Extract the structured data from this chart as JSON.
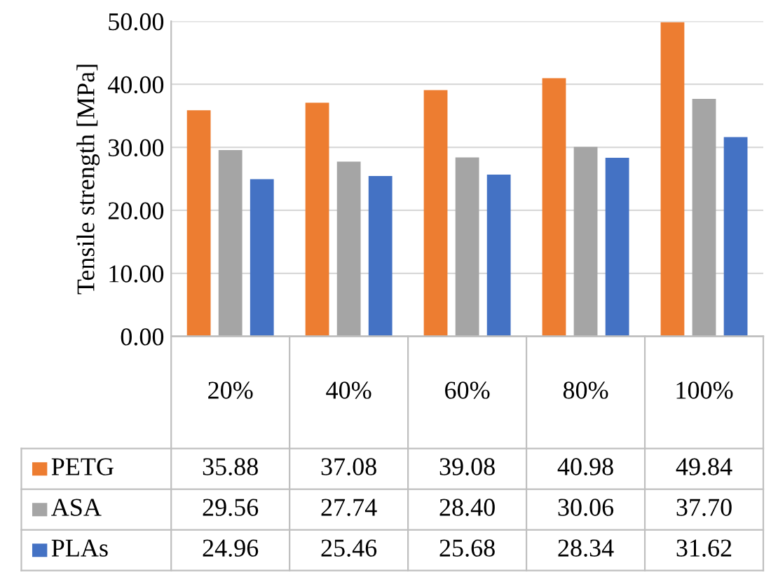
{
  "chart_data": {
    "type": "bar",
    "ylabel": "Tensile strength [MPa]",
    "categories": [
      "20%",
      "40%",
      "60%",
      "80%",
      "100%"
    ],
    "series": [
      {
        "name": "PETG",
        "color": "#ed7d31",
        "values": [
          35.88,
          37.08,
          39.08,
          40.98,
          49.84
        ],
        "value_labels": [
          "35.88",
          "37.08",
          "39.08",
          "40.98",
          "49.84"
        ]
      },
      {
        "name": "ASA",
        "color": "#a5a5a5",
        "values": [
          29.56,
          27.74,
          28.4,
          30.06,
          37.7
        ],
        "value_labels": [
          "29.56",
          "27.74",
          "28.40",
          "30.06",
          "37.70"
        ]
      },
      {
        "name": "PLAs",
        "color": "#4472c4",
        "values": [
          24.96,
          25.46,
          25.68,
          28.34,
          31.62
        ],
        "value_labels": [
          "24.96",
          "25.46",
          "25.68",
          "28.34",
          "31.62"
        ]
      }
    ],
    "ylim": [
      0,
      50
    ],
    "yticks": [
      {
        "value": 0,
        "label": "0.00"
      },
      {
        "value": 10,
        "label": "10.00"
      },
      {
        "value": 20,
        "label": "20.00"
      },
      {
        "value": 30,
        "label": "30.00"
      },
      {
        "value": 40,
        "label": "40.00"
      },
      {
        "value": 50,
        "label": "50.00"
      }
    ],
    "grid": "y",
    "legend": "bottom"
  }
}
